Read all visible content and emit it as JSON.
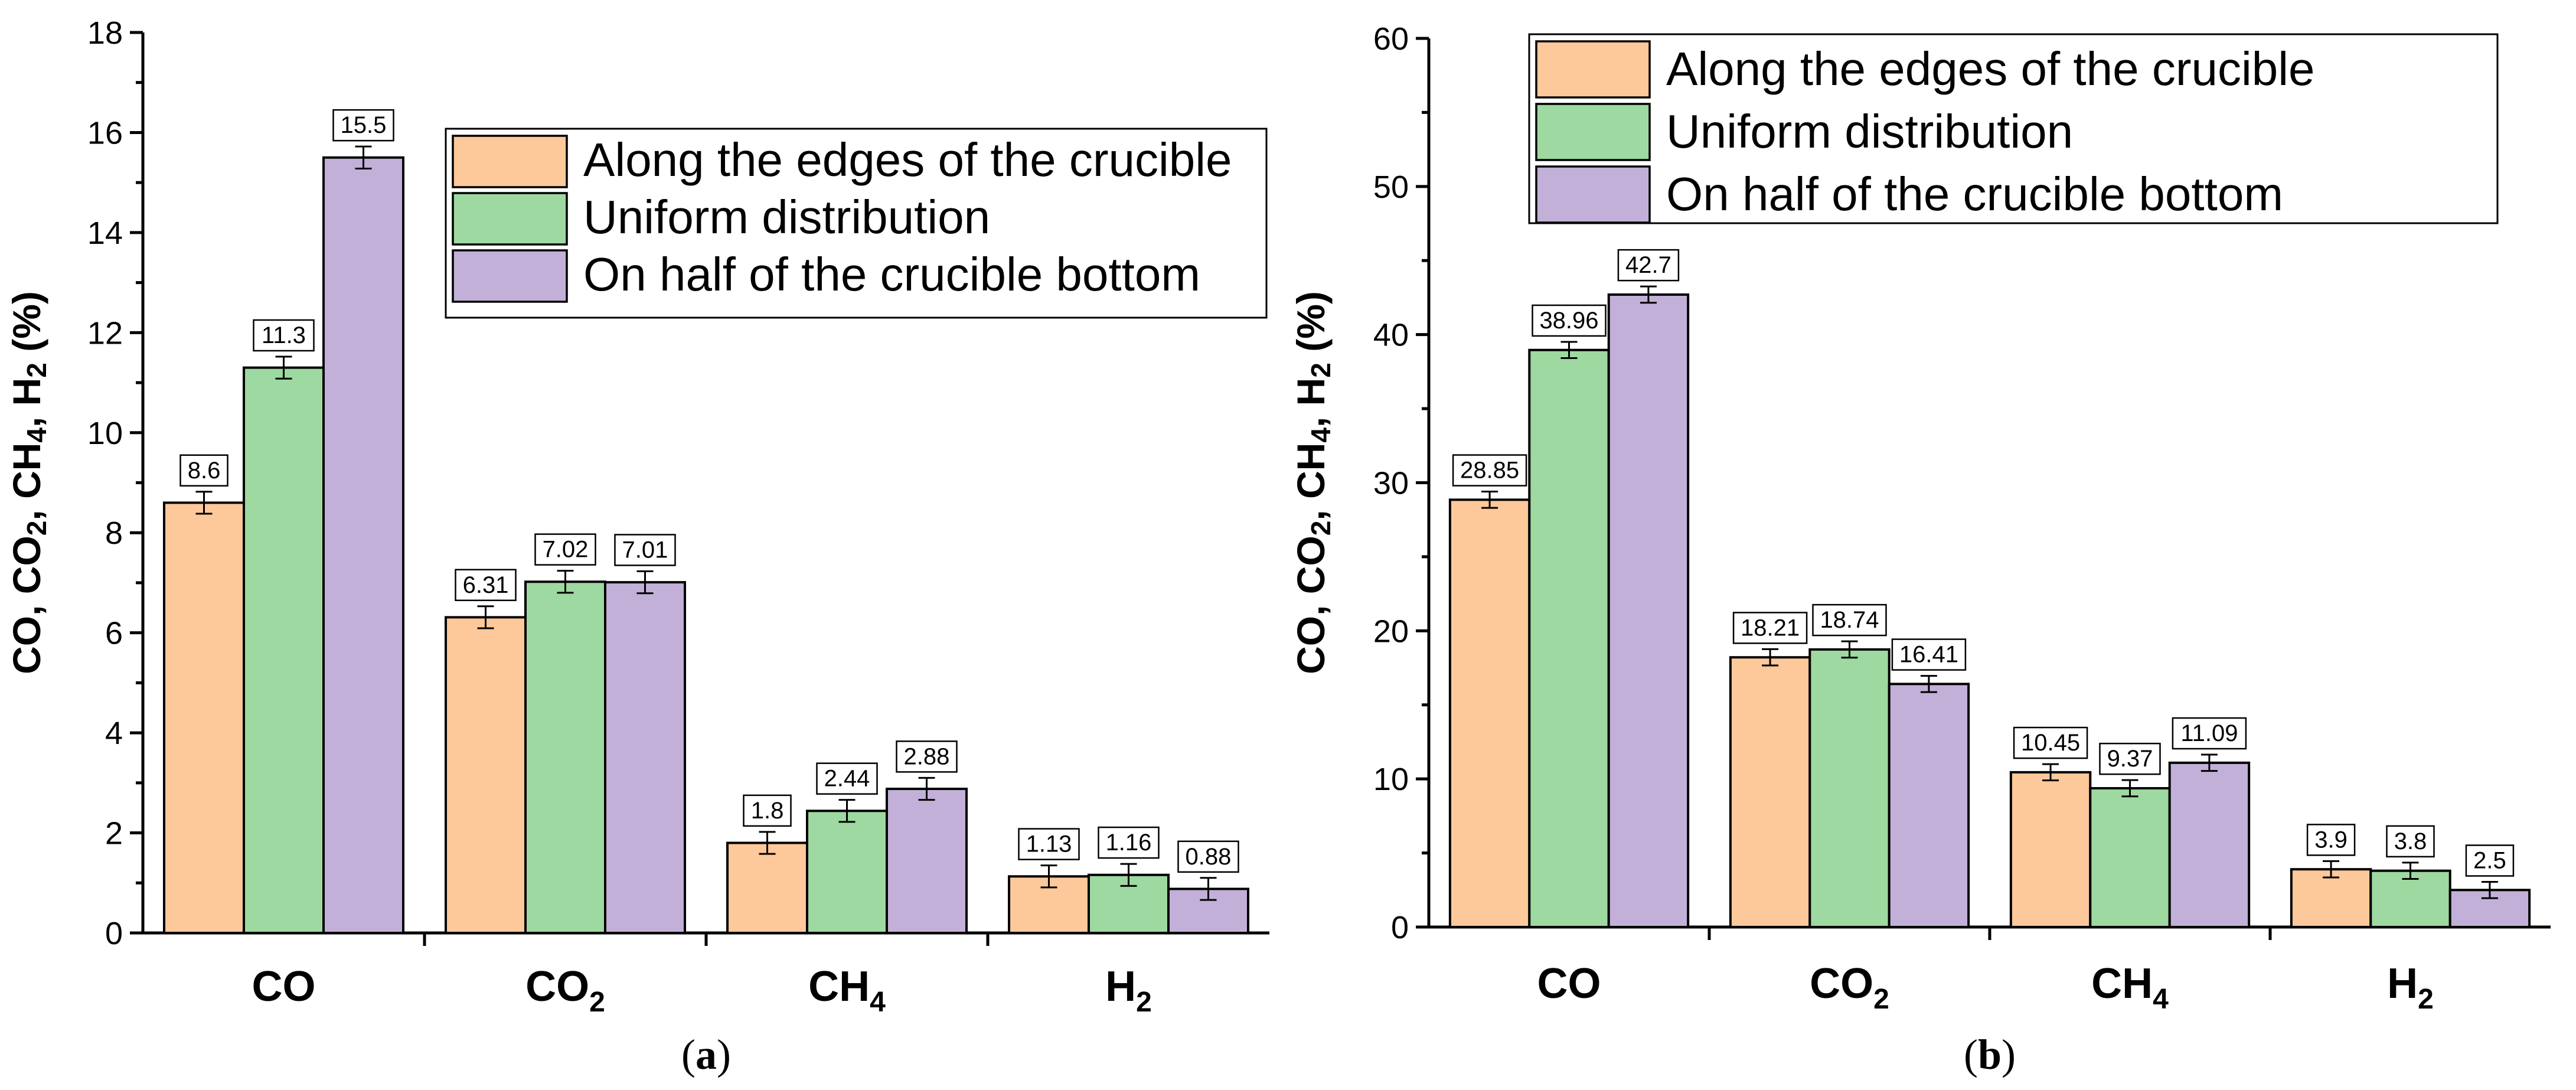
{
  "colors": {
    "Along the edges of the crucible": "#fdc89a",
    "Uniform distribution": "#9dd9a0",
    "On half of the crucible bottom": "#c2b0d8"
  },
  "legend_entries": [
    "Along the edges of the crucible",
    "Uniform distribution",
    "On half of the crucible bottom"
  ],
  "chart_data": [
    {
      "type": "bar",
      "panel_label": "a",
      "ylabel_parts": [
        "CO, CO",
        "2",
        ", CH",
        "4",
        ", H",
        "2",
        " (%)"
      ],
      "categories": [
        {
          "base": "CO",
          "sub": ""
        },
        {
          "base": "CO",
          "sub": "2"
        },
        {
          "base": "CH",
          "sub": "4"
        },
        {
          "base": "H",
          "sub": "2"
        }
      ],
      "ylim": [
        0,
        18
      ],
      "yticks": [
        0,
        2,
        4,
        6,
        8,
        10,
        12,
        14,
        16,
        18
      ],
      "legend_position": "top-right",
      "series": [
        {
          "name": "Along the edges of the crucible",
          "values": [
            8.6,
            6.31,
            1.8,
            1.13
          ],
          "labels": [
            "8.6",
            "6.31",
            "1.8",
            "1.13"
          ],
          "errors": [
            0.22,
            0.22,
            0.22,
            0.22
          ]
        },
        {
          "name": "Uniform distribution",
          "values": [
            11.3,
            7.02,
            2.44,
            1.16
          ],
          "labels": [
            "11.3",
            "7.02",
            "2.44",
            "1.16"
          ],
          "errors": [
            0.22,
            0.22,
            0.22,
            0.22
          ]
        },
        {
          "name": "On half of the crucible bottom",
          "values": [
            15.5,
            7.01,
            2.88,
            0.88
          ],
          "labels": [
            "15.5",
            "7.01",
            "2.88",
            "0.88"
          ],
          "errors": [
            0.22,
            0.22,
            0.22,
            0.22
          ]
        }
      ]
    },
    {
      "type": "bar",
      "panel_label": "b",
      "ylabel_parts": [
        "CO, CO",
        "2",
        ", CH",
        "4",
        ", H",
        "2",
        " (%)"
      ],
      "categories": [
        {
          "base": "CO",
          "sub": ""
        },
        {
          "base": "CO",
          "sub": "2"
        },
        {
          "base": "CH",
          "sub": "4"
        },
        {
          "base": "H",
          "sub": "2"
        }
      ],
      "ylim": [
        0,
        60
      ],
      "yticks": [
        0,
        10,
        20,
        30,
        40,
        50,
        60
      ],
      "legend_position": "top-right",
      "series": [
        {
          "name": "Along the edges of the crucible",
          "values": [
            28.85,
            18.21,
            10.45,
            3.9
          ],
          "labels": [
            "28.85",
            "18.21",
            "10.45",
            "3.9"
          ],
          "errors": [
            0.55,
            0.55,
            0.55,
            0.55
          ]
        },
        {
          "name": "Uniform distribution",
          "values": [
            38.96,
            18.74,
            9.37,
            3.8
          ],
          "labels": [
            "38.96",
            "18.74",
            "9.37",
            "3.8"
          ],
          "errors": [
            0.55,
            0.55,
            0.55,
            0.55
          ]
        },
        {
          "name": "On half of the crucible bottom",
          "values": [
            42.7,
            16.41,
            11.09,
            2.5
          ],
          "labels": [
            "42.7",
            "16.41",
            "11.09",
            "2.5"
          ],
          "errors": [
            0.55,
            0.55,
            0.55,
            0.55
          ]
        }
      ]
    }
  ]
}
